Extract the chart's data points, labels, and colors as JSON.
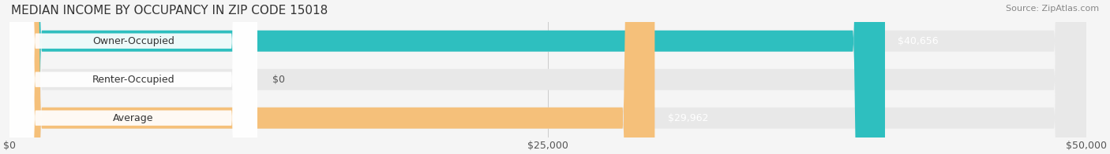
{
  "title": "MEDIAN INCOME BY OCCUPANCY IN ZIP CODE 15018",
  "source": "Source: ZipAtlas.com",
  "categories": [
    "Owner-Occupied",
    "Renter-Occupied",
    "Average"
  ],
  "values": [
    40656,
    0,
    29962
  ],
  "bar_colors": [
    "#2ebfbf",
    "#c9a8d4",
    "#f5c07a"
  ],
  "bar_background_colors": [
    "#e8e8e8",
    "#e8e8e8",
    "#e8e8e8"
  ],
  "value_labels": [
    "$40,656",
    "$0",
    "$29,962"
  ],
  "xlim": [
    0,
    50000
  ],
  "xticks": [
    0,
    25000,
    50000
  ],
  "xticklabels": [
    "$0",
    "$25,000",
    "$50,000"
  ],
  "title_fontsize": 11,
  "source_fontsize": 8,
  "label_fontsize": 9,
  "bar_height": 0.55,
  "background_color": "#f5f5f5"
}
